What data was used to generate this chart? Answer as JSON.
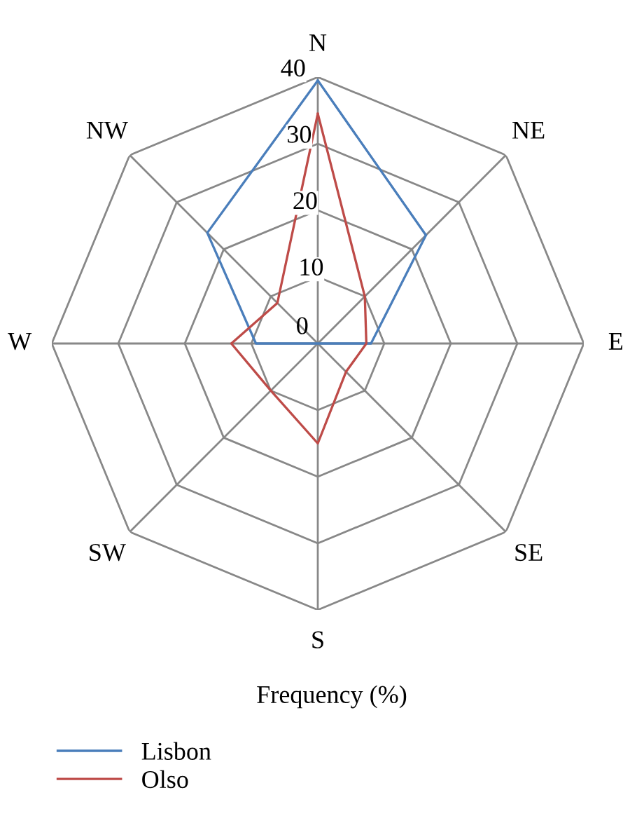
{
  "chart_data": {
    "type": "radar",
    "xlabel": "Frequency (%)",
    "categories": [
      "N",
      "NE",
      "E",
      "SE",
      "S",
      "SW",
      "W",
      "NW"
    ],
    "ylim": [
      0,
      40
    ],
    "yticks": [
      0,
      10,
      20,
      30,
      40
    ],
    "grid": true,
    "legend": "bottom left",
    "series": [
      {
        "name": "Lisbon",
        "color": "#4a7ebb",
        "values": [
          39.5,
          23,
          8,
          0,
          0,
          0,
          9.3,
          23.5
        ]
      },
      {
        "name": "Olso",
        "color": "#be4b48",
        "values": [
          34.5,
          10,
          7.3,
          6,
          15,
          10,
          13,
          8.6
        ]
      }
    ]
  }
}
